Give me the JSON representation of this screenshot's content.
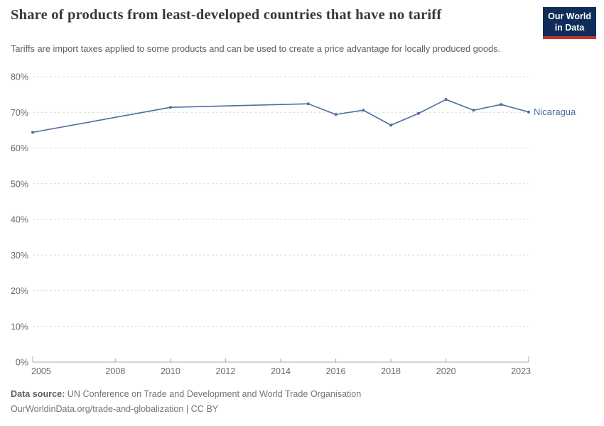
{
  "header": {
    "title": "Share of products from least-developed countries that have no tariff",
    "subtitle": "Tariffs are import taxes applied to some products and can be used to create a price advantage for locally produced goods.",
    "logo": {
      "line1": "Our World",
      "line2": "in Data",
      "bg_color": "#102D59",
      "accent_color": "#C0392B"
    }
  },
  "chart_data": {
    "type": "line",
    "title": "Share of products from least-developed countries that have no tariff",
    "series": [
      {
        "name": "Nicaragua",
        "color": "#4C6CA2",
        "points": [
          {
            "year": 2005,
            "value": 64.4
          },
          {
            "year": 2010,
            "value": 71.4
          },
          {
            "year": 2015,
            "value": 72.4
          },
          {
            "year": 2016,
            "value": 69.4
          },
          {
            "year": 2017,
            "value": 70.6
          },
          {
            "year": 2018,
            "value": 66.4
          },
          {
            "year": 2019,
            "value": 69.7
          },
          {
            "year": 2020,
            "value": 73.6
          },
          {
            "year": 2021,
            "value": 70.6
          },
          {
            "year": 2022,
            "value": 72.2
          },
          {
            "year": 2023,
            "value": 70.1
          }
        ]
      }
    ],
    "xlabel": "",
    "ylabel": "",
    "xlim": [
      2005,
      2023
    ],
    "ylim": [
      0,
      80
    ],
    "x_ticks": [
      2005,
      2008,
      2010,
      2012,
      2014,
      2016,
      2018,
      2020,
      2023
    ],
    "y_ticks": [
      0,
      10,
      20,
      30,
      40,
      50,
      60,
      70,
      80
    ],
    "y_tick_suffix": "%",
    "grid": "horizontal-dashed",
    "grid_color": "#d9d9d9",
    "axis_color": "#a8a8a8",
    "tick_label_color": "#686868"
  },
  "footer": {
    "datasource_label": "Data source:",
    "datasource_text": "UN Conference on Trade and Development and World Trade Organisation",
    "url_line": "OurWorldinData.org/trade-and-globalization | CC BY"
  }
}
